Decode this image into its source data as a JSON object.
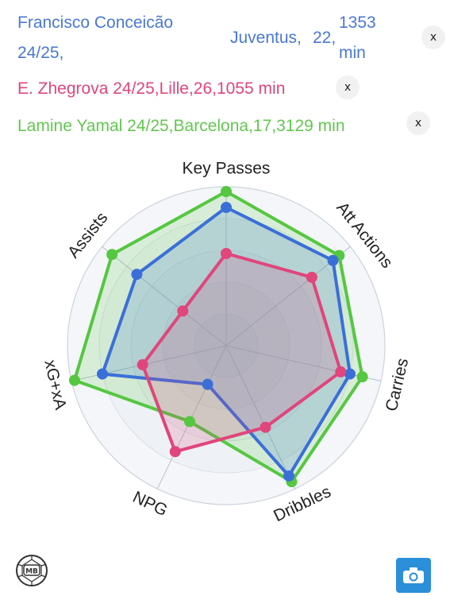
{
  "players": [
    {
      "name_line1": "Francisco Conceicão",
      "name_line2": "24/25,",
      "club": "Juventus,",
      "age": "22,",
      "minutes_line1": "1353",
      "minutes_line2": "min",
      "color": "#4a78d6",
      "close": "x"
    },
    {
      "label": "E. Zhegrova 24/25,Lille,26,1055 min",
      "color": "#e0457c",
      "close": "x"
    },
    {
      "label": "Lamine Yamal 24/25,Barcelona,17,3129 min",
      "color": "#62c74f",
      "close": "x"
    }
  ],
  "chart_data": {
    "type": "radar",
    "axes": [
      "Key Passes",
      "Att Actions",
      "Carries",
      "Dribbles",
      "NPG",
      "xG+xA",
      "Assists"
    ],
    "range": [
      0,
      1
    ],
    "series": [
      {
        "name": "Francisco Conceicão 24/25",
        "color": "#3a6fd8",
        "values": [
          0.87,
          0.86,
          0.8,
          0.91,
          0.27,
          0.8,
          0.72
        ]
      },
      {
        "name": "E. Zhegrova 24/25",
        "color": "#e0457c",
        "values": [
          0.58,
          0.69,
          0.74,
          0.57,
          0.74,
          0.54,
          0.35
        ]
      },
      {
        "name": "Lamine Yamal 24/25",
        "color": "#55c740",
        "values": [
          0.97,
          0.91,
          0.88,
          0.95,
          0.53,
          0.98,
          0.92
        ]
      }
    ],
    "grid_rings": 5
  },
  "icons": {
    "logo": "mb-logo-icon",
    "camera": "camera-icon"
  },
  "logo_text": "MB"
}
